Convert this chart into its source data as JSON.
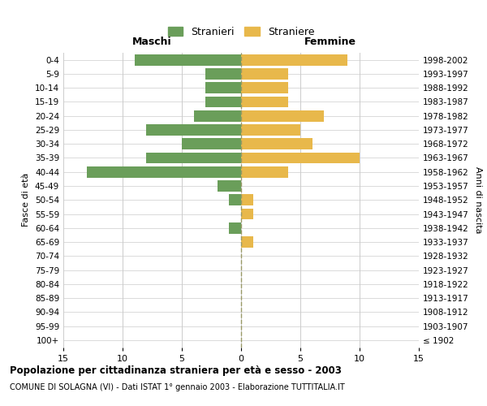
{
  "age_groups": [
    "100+",
    "95-99",
    "90-94",
    "85-89",
    "80-84",
    "75-79",
    "70-74",
    "65-69",
    "60-64",
    "55-59",
    "50-54",
    "45-49",
    "40-44",
    "35-39",
    "30-34",
    "25-29",
    "20-24",
    "15-19",
    "10-14",
    "5-9",
    "0-4"
  ],
  "birth_years": [
    "≤ 1902",
    "1903-1907",
    "1908-1912",
    "1913-1917",
    "1918-1922",
    "1923-1927",
    "1928-1932",
    "1933-1937",
    "1938-1942",
    "1943-1947",
    "1948-1952",
    "1953-1957",
    "1958-1962",
    "1963-1967",
    "1968-1972",
    "1973-1977",
    "1978-1982",
    "1983-1987",
    "1988-1992",
    "1993-1997",
    "1998-2002"
  ],
  "males": [
    0,
    0,
    0,
    0,
    0,
    0,
    0,
    0,
    1,
    0,
    1,
    2,
    13,
    8,
    5,
    8,
    4,
    3,
    3,
    3,
    9
  ],
  "females": [
    0,
    0,
    0,
    0,
    0,
    0,
    0,
    1,
    0,
    1,
    1,
    0,
    4,
    10,
    6,
    5,
    7,
    4,
    4,
    4,
    9
  ],
  "male_color": "#6a9e5a",
  "female_color": "#e8b84b",
  "xlim": 15,
  "title": "Popolazione per cittadinanza straniera per età e sesso - 2003",
  "subtitle": "COMUNE DI SOLAGNA (VI) - Dati ISTAT 1° gennaio 2003 - Elaborazione TUTTITALIA.IT",
  "xlabel_left": "Maschi",
  "xlabel_right": "Femmine",
  "ylabel_left": "Fasce di età",
  "ylabel_right": "Anni di nascita",
  "legend_male": "Stranieri",
  "legend_female": "Straniere",
  "bg_color": "#ffffff",
  "grid_color": "#cccccc",
  "bar_height": 0.8
}
